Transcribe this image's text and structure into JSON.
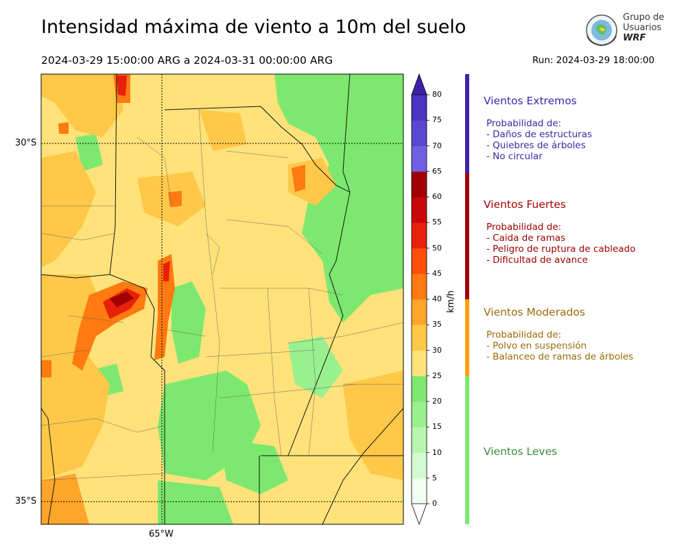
{
  "title": "Intensidad máxima de viento a 10m del suelo",
  "period": "2024-03-29 15:00:00 ARG  a  2024-03-31 00:00:00 ARG",
  "run": "Run: 2024-03-29 18:00:00",
  "logo": {
    "line1": "Grupo de",
    "line2": "Usuarios",
    "line3": "WRF"
  },
  "map": {
    "lat_labels": [
      "30°S",
      "35°S"
    ],
    "lon_labels": [
      "65°W"
    ]
  },
  "colorbar": {
    "unit": "km/h",
    "ticks": [
      "0",
      "5",
      "10",
      "15",
      "20",
      "25",
      "30",
      "35",
      "40",
      "45",
      "50",
      "55",
      "60",
      "65",
      "70",
      "75",
      "80"
    ],
    "colors": [
      "#f0fff0",
      "#d4fad4",
      "#b8f5b0",
      "#9af08e",
      "#7de86f",
      "#ffe27a",
      "#ffc848",
      "#ffa62a",
      "#ff7a10",
      "#ff4e08",
      "#e8200a",
      "#c80808",
      "#a00000",
      "#7060e0",
      "#5a48d0",
      "#4a34c0",
      "#3c22a8"
    ]
  },
  "categories": [
    {
      "title": "Vientos Extremos",
      "color": "#3a28a8",
      "desc": "Probabilidad de:\n- Daños de estructuras\n- Quiebres de árboles\n- No circular"
    },
    {
      "title": "Vientos Fuertes",
      "color": "#a00000",
      "desc": "Probabilidad de:\n- Caida de ramas\n- Peligro de ruptura de cableado\n- Dificultad de avance"
    },
    {
      "title": "Vientos Moderados",
      "color": "#9a6a08",
      "desc": "Probabilidad de:\n- Polvo en suspensión\n- Balanceo de ramas de árboles"
    },
    {
      "title": "Vientos Leves",
      "color": "#3a8a3a",
      "desc": ""
    }
  ]
}
